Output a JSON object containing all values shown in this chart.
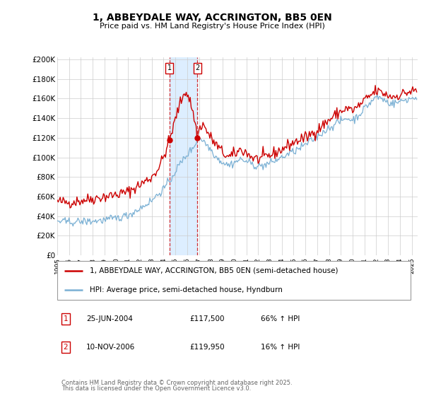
{
  "title": "1, ABBEYDALE WAY, ACCRINGTON, BB5 0EN",
  "subtitle": "Price paid vs. HM Land Registry's House Price Index (HPI)",
  "ylim": [
    0,
    200000
  ],
  "xlim_start": 1995.0,
  "xlim_end": 2025.5,
  "transaction1": {
    "label": "1",
    "date": "25-JUN-2004",
    "price": 117500,
    "hpi_change": "66% ↑ HPI",
    "year": 2004.49
  },
  "transaction2": {
    "label": "2",
    "date": "10-NOV-2006",
    "price": 119950,
    "hpi_change": "16% ↑ HPI",
    "year": 2006.86
  },
  "legend_line1": "1, ABBEYDALE WAY, ACCRINGTON, BB5 0EN (semi-detached house)",
  "legend_line2": "HPI: Average price, semi-detached house, Hyndburn",
  "footnote1": "Contains HM Land Registry data © Crown copyright and database right 2025.",
  "footnote2": "This data is licensed under the Open Government Licence v3.0.",
  "red_color": "#cc0000",
  "blue_color": "#7ab0d4",
  "shade_color": "#ddeeff",
  "grid_color": "#cccccc",
  "red_points": [
    [
      1995.0,
      55000
    ],
    [
      1996.0,
      54000
    ],
    [
      1997.0,
      56000
    ],
    [
      1998.0,
      58000
    ],
    [
      1999.0,
      60000
    ],
    [
      2000.0,
      62000
    ],
    [
      2001.0,
      65000
    ],
    [
      2002.0,
      72000
    ],
    [
      2003.0,
      80000
    ],
    [
      2003.5,
      88000
    ],
    [
      2004.0,
      100000
    ],
    [
      2004.49,
      117500
    ],
    [
      2004.8,
      130000
    ],
    [
      2005.2,
      148000
    ],
    [
      2005.5,
      158000
    ],
    [
      2005.8,
      168000
    ],
    [
      2006.0,
      165000
    ],
    [
      2006.3,
      155000
    ],
    [
      2006.6,
      140000
    ],
    [
      2006.86,
      119950
    ],
    [
      2007.0,
      128000
    ],
    [
      2007.3,
      135000
    ],
    [
      2007.5,
      130000
    ],
    [
      2008.0,
      120000
    ],
    [
      2008.5,
      112000
    ],
    [
      2009.0,
      105000
    ],
    [
      2009.5,
      100000
    ],
    [
      2010.0,
      103000
    ],
    [
      2010.5,
      108000
    ],
    [
      2011.0,
      105000
    ],
    [
      2011.5,
      100000
    ],
    [
      2012.0,
      98000
    ],
    [
      2012.5,
      100000
    ],
    [
      2013.0,
      102000
    ],
    [
      2013.5,
      105000
    ],
    [
      2014.0,
      108000
    ],
    [
      2014.5,
      112000
    ],
    [
      2015.0,
      115000
    ],
    [
      2015.5,
      118000
    ],
    [
      2016.0,
      120000
    ],
    [
      2016.5,
      124000
    ],
    [
      2017.0,
      128000
    ],
    [
      2017.5,
      133000
    ],
    [
      2018.0,
      138000
    ],
    [
      2018.5,
      143000
    ],
    [
      2019.0,
      147000
    ],
    [
      2019.5,
      150000
    ],
    [
      2020.0,
      148000
    ],
    [
      2020.5,
      152000
    ],
    [
      2021.0,
      158000
    ],
    [
      2021.5,
      163000
    ],
    [
      2022.0,
      168000
    ],
    [
      2022.5,
      166000
    ],
    [
      2023.0,
      163000
    ],
    [
      2023.5,
      162000
    ],
    [
      2024.0,
      164000
    ],
    [
      2024.5,
      166000
    ],
    [
      2025.3,
      168000
    ]
  ],
  "blue_points": [
    [
      1995.0,
      35000
    ],
    [
      1996.0,
      34000
    ],
    [
      1997.0,
      34500
    ],
    [
      1998.0,
      35000
    ],
    [
      1999.0,
      36000
    ],
    [
      2000.0,
      38000
    ],
    [
      2001.0,
      41000
    ],
    [
      2002.0,
      48000
    ],
    [
      2003.0,
      56000
    ],
    [
      2003.5,
      62000
    ],
    [
      2004.0,
      68000
    ],
    [
      2004.49,
      75000
    ],
    [
      2004.8,
      82000
    ],
    [
      2005.2,
      90000
    ],
    [
      2005.5,
      95000
    ],
    [
      2005.8,
      100000
    ],
    [
      2006.0,
      103000
    ],
    [
      2006.3,
      107000
    ],
    [
      2006.6,
      112000
    ],
    [
      2006.86,
      118000
    ],
    [
      2007.0,
      120000
    ],
    [
      2007.3,
      118000
    ],
    [
      2007.5,
      115000
    ],
    [
      2008.0,
      108000
    ],
    [
      2008.5,
      100000
    ],
    [
      2009.0,
      95000
    ],
    [
      2009.5,
      92000
    ],
    [
      2010.0,
      95000
    ],
    [
      2010.5,
      98000
    ],
    [
      2011.0,
      96000
    ],
    [
      2011.5,
      93000
    ],
    [
      2012.0,
      91000
    ],
    [
      2012.5,
      92000
    ],
    [
      2013.0,
      94000
    ],
    [
      2013.5,
      97000
    ],
    [
      2014.0,
      100000
    ],
    [
      2014.5,
      103000
    ],
    [
      2015.0,
      106000
    ],
    [
      2015.5,
      109000
    ],
    [
      2016.0,
      113000
    ],
    [
      2016.5,
      117000
    ],
    [
      2017.0,
      121000
    ],
    [
      2017.5,
      126000
    ],
    [
      2018.0,
      130000
    ],
    [
      2018.5,
      134000
    ],
    [
      2019.0,
      137000
    ],
    [
      2019.5,
      140000
    ],
    [
      2020.0,
      138000
    ],
    [
      2020.5,
      143000
    ],
    [
      2021.0,
      150000
    ],
    [
      2021.5,
      156000
    ],
    [
      2022.0,
      162000
    ],
    [
      2022.5,
      160000
    ],
    [
      2023.0,
      156000
    ],
    [
      2023.5,
      155000
    ],
    [
      2024.0,
      157000
    ],
    [
      2024.5,
      159000
    ],
    [
      2025.3,
      161000
    ]
  ]
}
